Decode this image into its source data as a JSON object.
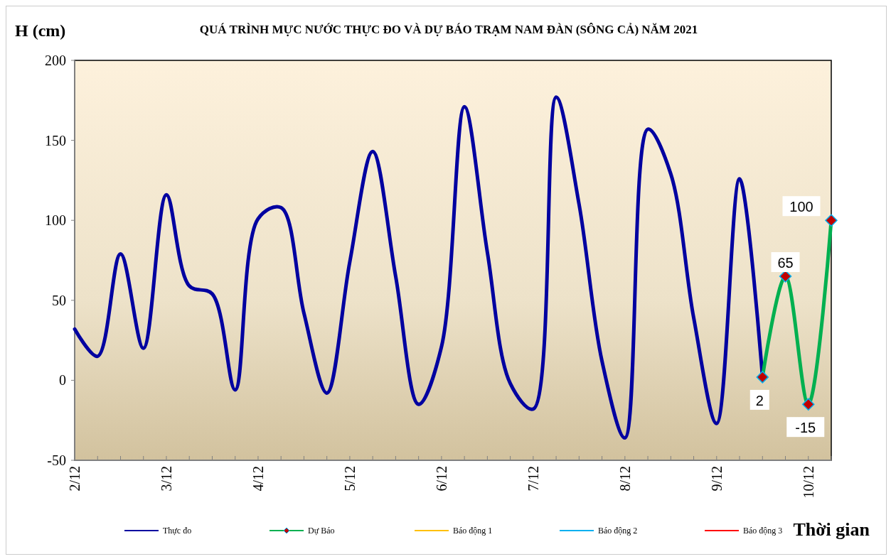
{
  "chart_data": {
    "type": "line",
    "title": "QUÁ TRÌNH MỰC NƯỚC THỰC ĐO VÀ DỰ BÁO TRẠM  NAM  ĐÀN (SÔNG CẢ) NĂM 2021",
    "xlabel": "Thời gian",
    "ylabel": "H (cm)",
    "xlim": [
      "2021-12-02T00:00",
      "2021-12-10T06:00"
    ],
    "xticks": [
      {
        "value": "2021-12-02T00:00",
        "label": "2/12"
      },
      {
        "value": "2021-12-02T06:00",
        "label": null
      },
      {
        "value": "2021-12-02T12:00",
        "label": null
      },
      {
        "value": "2021-12-02T18:00",
        "label": null
      },
      {
        "value": "2021-12-03T00:00",
        "label": "3/12"
      },
      {
        "value": "2021-12-03T06:00",
        "label": null
      },
      {
        "value": "2021-12-03T12:00",
        "label": null
      },
      {
        "value": "2021-12-03T18:00",
        "label": null
      },
      {
        "value": "2021-12-04T00:00",
        "label": "4/12"
      },
      {
        "value": "2021-12-04T06:00",
        "label": null
      },
      {
        "value": "2021-12-04T12:00",
        "label": null
      },
      {
        "value": "2021-12-04T18:00",
        "label": null
      },
      {
        "value": "2021-12-05T00:00",
        "label": "5/12"
      },
      {
        "value": "2021-12-05T06:00",
        "label": null
      },
      {
        "value": "2021-12-05T12:00",
        "label": null
      },
      {
        "value": "2021-12-05T18:00",
        "label": null
      },
      {
        "value": "2021-12-06T00:00",
        "label": "6/12"
      },
      {
        "value": "2021-12-06T06:00",
        "label": null
      },
      {
        "value": "2021-12-06T12:00",
        "label": null
      },
      {
        "value": "2021-12-06T18:00",
        "label": null
      },
      {
        "value": "2021-12-07T00:00",
        "label": "7/12"
      },
      {
        "value": "2021-12-07T06:00",
        "label": null
      },
      {
        "value": "2021-12-07T12:00",
        "label": null
      },
      {
        "value": "2021-12-07T18:00",
        "label": null
      },
      {
        "value": "2021-12-08T00:00",
        "label": "8/12"
      },
      {
        "value": "2021-12-08T06:00",
        "label": null
      },
      {
        "value": "2021-12-08T12:00",
        "label": null
      },
      {
        "value": "2021-12-08T18:00",
        "label": null
      },
      {
        "value": "2021-12-09T00:00",
        "label": "9/12"
      },
      {
        "value": "2021-12-09T06:00",
        "label": null
      },
      {
        "value": "2021-12-09T12:00",
        "label": null
      },
      {
        "value": "2021-12-09T18:00",
        "label": null
      },
      {
        "value": "2021-12-10T00:00",
        "label": "10/12"
      },
      {
        "value": "2021-12-10T06:00",
        "label": null
      }
    ],
    "ylim": [
      -50,
      200
    ],
    "yticks": [
      -50,
      0,
      50,
      100,
      150,
      200
    ],
    "grid": false,
    "legend": "bottom",
    "line_style": "solid",
    "series": [
      {
        "name": "Thực đo",
        "color": "#0000a0",
        "marker": "none",
        "x": [
          "2021-12-02T00:00",
          "2021-12-02T06:00",
          "2021-12-02T12:00",
          "2021-12-02T18:00",
          "2021-12-03T00:00",
          "2021-12-03T06:00",
          "2021-12-03T12:00",
          "2021-12-03T18:00",
          "2021-12-04T00:00",
          "2021-12-04T06:00",
          "2021-12-04T12:00",
          "2021-12-04T18:00",
          "2021-12-05T00:00",
          "2021-12-05T06:00",
          "2021-12-05T12:00",
          "2021-12-05T18:00",
          "2021-12-06T00:00",
          "2021-12-06T06:00",
          "2021-12-06T12:00",
          "2021-12-06T18:00",
          "2021-12-07T00:00",
          "2021-12-07T06:00",
          "2021-12-07T12:00",
          "2021-12-07T18:00",
          "2021-12-08T00:00",
          "2021-12-08T06:00",
          "2021-12-08T12:00",
          "2021-12-08T18:00",
          "2021-12-09T00:00",
          "2021-12-09T06:00",
          "2021-12-09T12:00"
        ],
        "values": [
          32,
          15,
          79,
          20,
          116,
          59,
          54,
          -6,
          101,
          108,
          42,
          -8,
          74,
          143,
          65,
          -15,
          21,
          171,
          80,
          -2,
          -18,
          177,
          110,
          12,
          -36,
          157,
          129,
          39,
          -27,
          126,
          2
        ]
      },
      {
        "name": "Dự Báo",
        "color": "#00b050",
        "marker": "diamond",
        "x": [
          "2021-12-09T12:00",
          "2021-12-09T18:00",
          "2021-12-10T00:00",
          "2021-12-10T06:00"
        ],
        "values": [
          2,
          65,
          -15,
          100
        ],
        "value_labels": [
          "2",
          "65",
          "-15",
          "100"
        ]
      },
      {
        "name": "Báo động 1",
        "color": "#ffc000",
        "marker": "none"
      },
      {
        "name": "Báo động 2",
        "color": "#00b0f0",
        "marker": "none"
      },
      {
        "name": "Báo động 3",
        "color": "#ff0000",
        "marker": "none"
      }
    ]
  }
}
